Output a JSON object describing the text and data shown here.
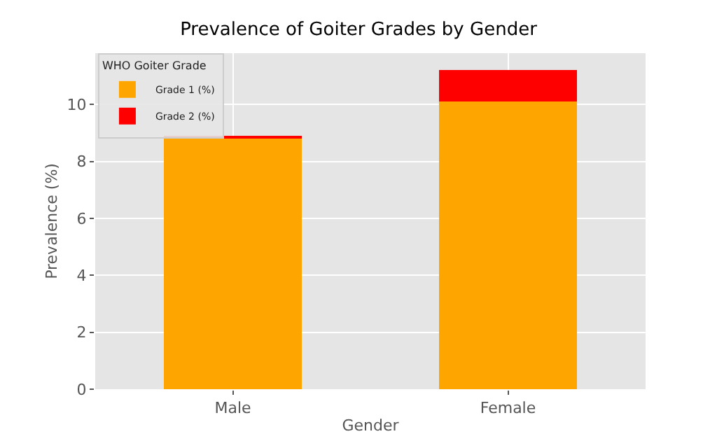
{
  "chart_data": {
    "type": "bar",
    "title": "Prevalence of Goiter Grades by Gender",
    "xlabel": "Gender",
    "ylabel": "Prevalence (%)",
    "legend_title": "WHO Goiter Grade",
    "categories": [
      "Male",
      "Female"
    ],
    "stacked": true,
    "series": [
      {
        "name": "Grade 1 (%)",
        "color": "#ffa500",
        "values": [
          8.8,
          10.1
        ]
      },
      {
        "name": "Grade 2 (%)",
        "color": "#ff0000",
        "values": [
          0.1,
          1.1
        ]
      }
    ],
    "ylim": [
      0,
      11.8
    ],
    "yticks": [
      0,
      2,
      4,
      6,
      8,
      10
    ],
    "grid": true,
    "legend": "top left"
  }
}
